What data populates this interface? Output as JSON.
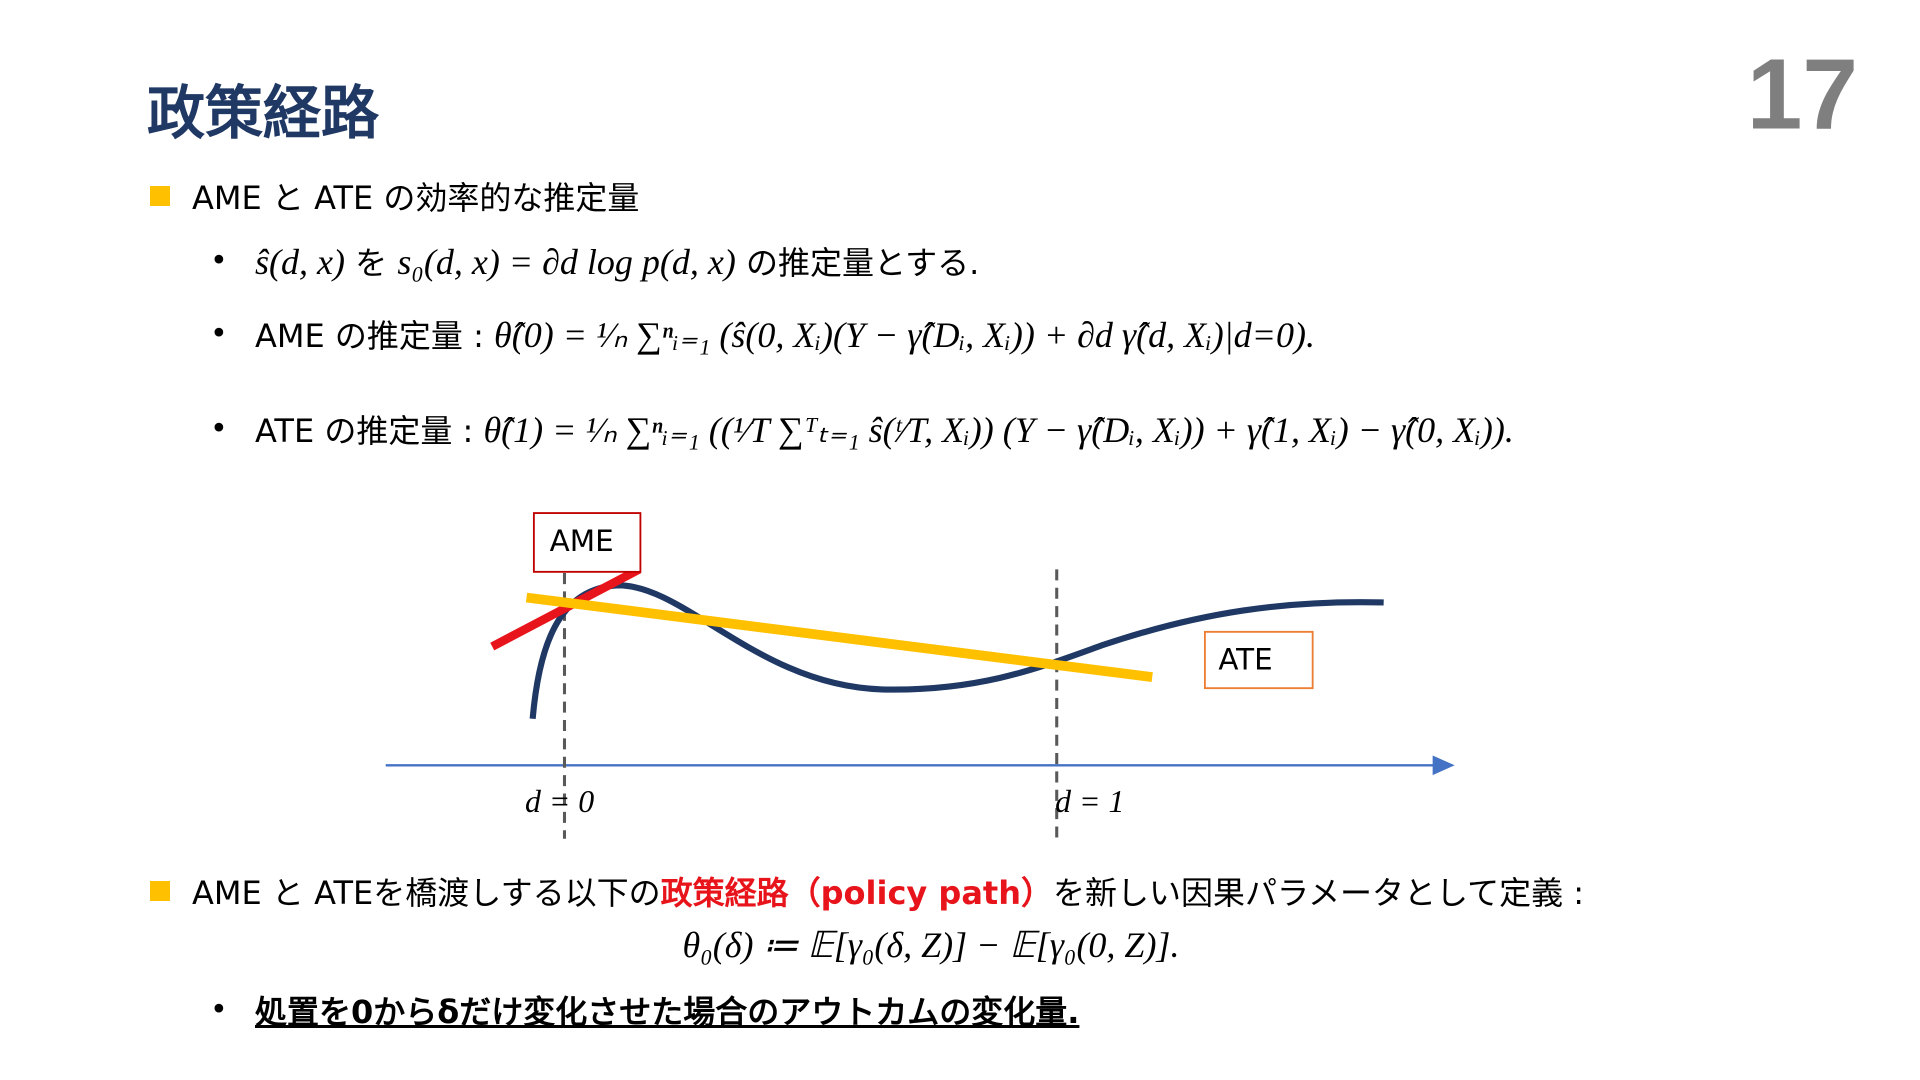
{
  "page_number": "17",
  "title": "政策経路",
  "sections": [
    {
      "segments": [
        {
          "text": "AME と ATE の効率的な推定量"
        }
      ],
      "items": [
        {
          "segments": [
            {
              "math": "ŝ(d, x)"
            },
            {
              "text": " を "
            },
            {
              "math": "s₀(d, x) = ∂d log p(d, x)"
            },
            {
              "text": " の推定量とする."
            }
          ]
        },
        {
          "segments": [
            {
              "text": "AME の推定量 : "
            },
            {
              "math": "θ̂(0) = ¹⁄ₙ ∑ⁿᵢ₌₁ (ŝ(0, Xᵢ)(Y − γ̂(Dᵢ, Xᵢ)) + ∂d γ̂(d, Xᵢ)|d=0)."
            }
          ]
        },
        {
          "segments": [
            {
              "text": "ATE の推定量 : "
            },
            {
              "math": "θ̂(1) = ¹⁄ₙ ∑ⁿᵢ₌₁ ((¹⁄T ∑ᵀₜ₌₁ ŝ(ᵗ⁄T, Xᵢ)) (Y − γ̂(Dᵢ, Xᵢ)) + γ̂(1, Xᵢ) − γ̂(0, Xᵢ))."
            }
          ]
        }
      ]
    },
    {
      "segments": [
        {
          "text": "AME と ATEを橋渡しする以下の"
        },
        {
          "text": "政策経路（policy path）",
          "color": "#e8141b"
        },
        {
          "text": "を新しい因果パラメータとして定義 :"
        }
      ],
      "formula": "θ₀(δ) ≔ 𝔼[γ₀(δ, Z)] − 𝔼[γ₀(0, Z)].",
      "items": [
        {
          "segments": [
            {
              "text": "処置を0からδだけ変化させた場合のアウトカムの変化量."
            }
          ],
          "emphasis": "bold-underline"
        }
      ]
    }
  ],
  "diagram": {
    "labels": {
      "ame": "AME",
      "ate": "ATE",
      "d0": "d = 0",
      "d1": "d = 1"
    }
  }
}
